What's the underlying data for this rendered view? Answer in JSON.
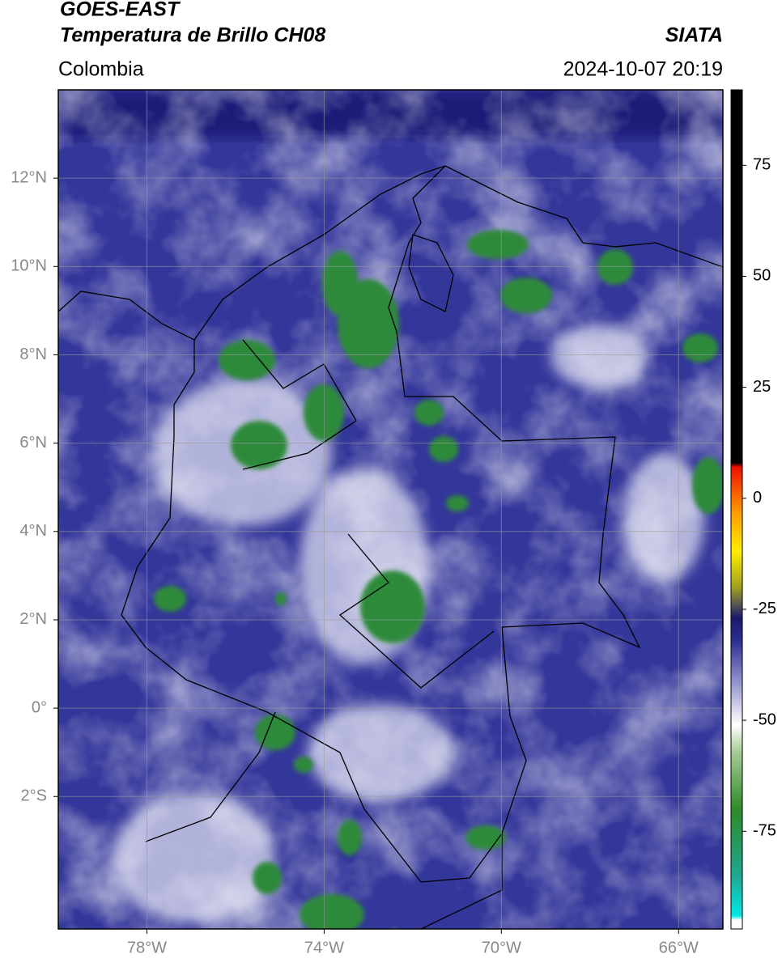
{
  "header": {
    "title": "GOES-EAST",
    "subtitle": "Temperatura de Brillo CH08",
    "source": "SIATA",
    "region": "Colombia",
    "timestamp": "2024-10-07 20:19"
  },
  "map": {
    "xlim": [
      -80,
      -65
    ],
    "ylim": [
      -5,
      14
    ],
    "grid": true,
    "xticks": [
      {
        "value": -78,
        "label": "78°W"
      },
      {
        "value": -74,
        "label": "74°W"
      },
      {
        "value": -70,
        "label": "70°W"
      },
      {
        "value": -66,
        "label": "66°W"
      }
    ],
    "yticks": [
      {
        "value": 12,
        "label": "12°N"
      },
      {
        "value": 10,
        "label": "10°N"
      },
      {
        "value": 8,
        "label": "8°N"
      },
      {
        "value": 6,
        "label": "6°N"
      },
      {
        "value": 4,
        "label": "4°N"
      },
      {
        "value": 2,
        "label": "2°N"
      },
      {
        "value": 0,
        "label": "0°"
      },
      {
        "value": -2,
        "label": "2°S"
      }
    ]
  },
  "colorbar": {
    "range": [
      -97,
      92
    ],
    "ticks": [
      75,
      50,
      25,
      0,
      -25,
      -50,
      -75
    ],
    "stops": [
      {
        "value": -97,
        "color": "#ffffff"
      },
      {
        "value": -95,
        "color": "#ffffff"
      },
      {
        "value": -94,
        "color": "#00e8e8"
      },
      {
        "value": -85,
        "color": "#1fa890"
      },
      {
        "value": -70,
        "color": "#2f8a2a"
      },
      {
        "value": -57,
        "color": "#a8cc98"
      },
      {
        "value": -51,
        "color": "#ffffff"
      },
      {
        "value": -42,
        "color": "#9a9ad0"
      },
      {
        "value": -32,
        "color": "#2c2e92"
      },
      {
        "value": -27,
        "color": "#1a1a6a"
      },
      {
        "value": -24,
        "color": "#555555"
      },
      {
        "value": -20,
        "color": "#a0a020"
      },
      {
        "value": -12,
        "color": "#ffee00"
      },
      {
        "value": -3,
        "color": "#ff9900"
      },
      {
        "value": 7,
        "color": "#ee1100"
      },
      {
        "value": 8,
        "color": "#000000"
      },
      {
        "value": 92,
        "color": "#000000"
      }
    ]
  }
}
